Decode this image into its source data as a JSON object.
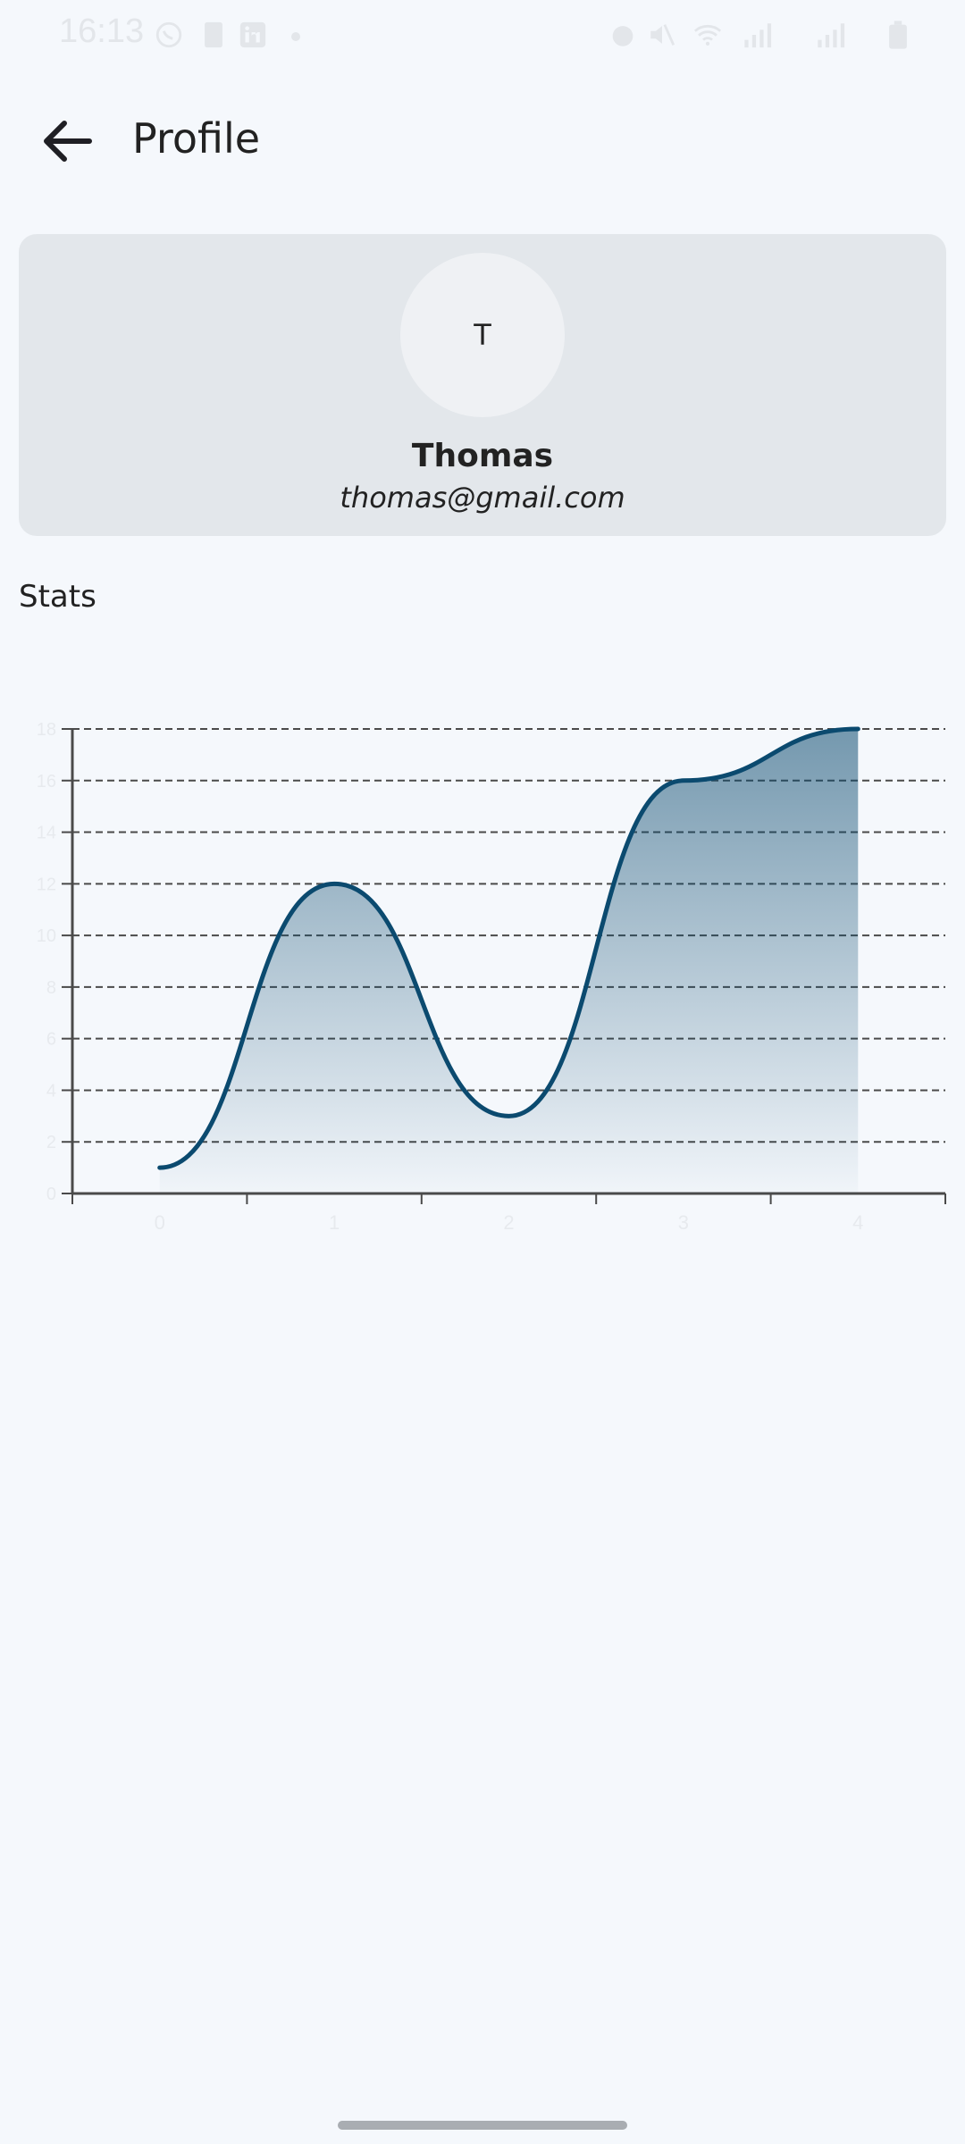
{
  "status_bar": {
    "time": "16:13",
    "icons": [
      "whatsapp-icon",
      "n-icon",
      "linkedin-icon",
      "dot-icon",
      "alarm-icon",
      "mute-icon",
      "wifi-icon",
      "signal-icon",
      "signal-icon",
      "battery-icon"
    ]
  },
  "app_bar": {
    "title": "Profile",
    "back_icon": "arrow-left-icon"
  },
  "profile": {
    "avatar_initial": "T",
    "name": "Thomas",
    "email": "thomas@gmail.com"
  },
  "stats": {
    "heading": "Stats"
  },
  "colors": {
    "line": "#0b4a6f",
    "fill": "#0b4a6f",
    "background": "#f5f8fc",
    "card": "#e3e7eb"
  },
  "chart_data": {
    "type": "area",
    "x": [
      0,
      1,
      2,
      3,
      4
    ],
    "values": [
      1,
      12,
      3,
      16,
      18
    ],
    "x_ticks": [
      "0",
      "1",
      "2",
      "3",
      "4"
    ],
    "y_ticks": [
      "0",
      "2",
      "4",
      "6",
      "8",
      "10",
      "12",
      "14",
      "16",
      "18"
    ],
    "ylim": [
      0,
      18
    ],
    "xlim": [
      -0.5,
      4.5
    ],
    "grid": "horizontal-dashed",
    "curve": "smooth"
  }
}
